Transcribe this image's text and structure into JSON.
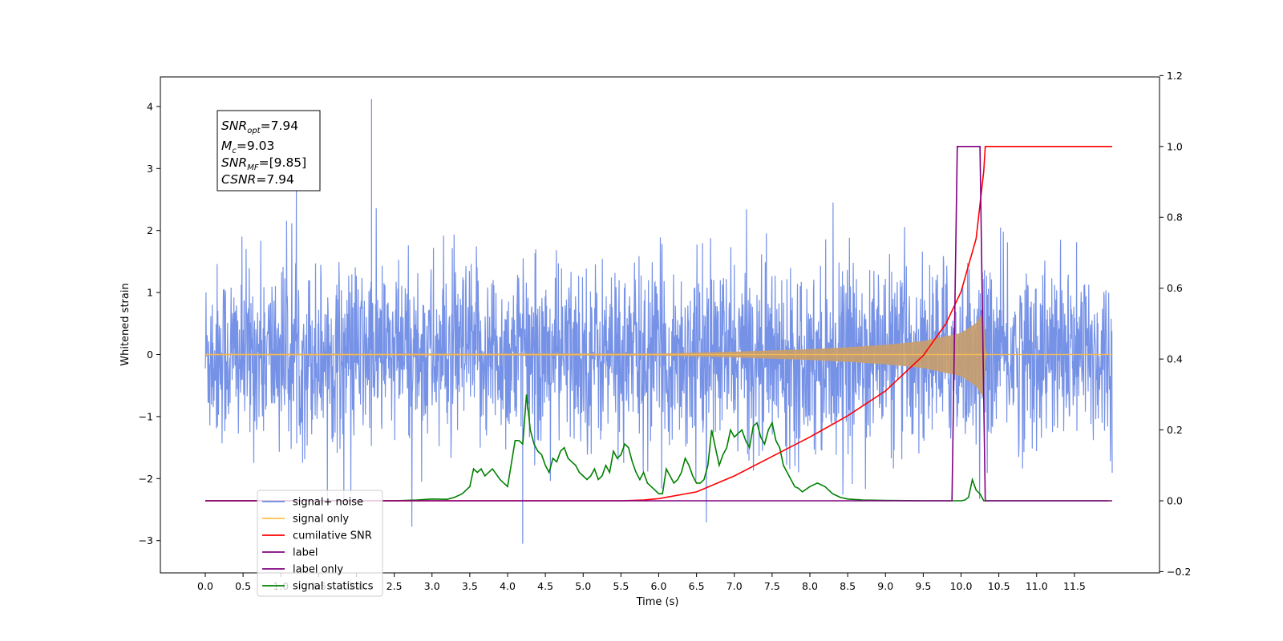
{
  "chart_data": {
    "type": "line",
    "xlabel": "Time (s)",
    "ylabel": "Whitened strain",
    "xlim": [
      -0.6,
      12.55
    ],
    "ylim_left": [
      -3.5,
      4.5
    ],
    "ylim_right": [
      -0.2,
      1.2
    ],
    "x_ticks": [
      "0.0",
      "0.5",
      "1.0",
      "1.5",
      "2.0",
      "2.5",
      "3.0",
      "3.5",
      "4.0",
      "4.5",
      "5.0",
      "5.5",
      "6.0",
      "6.5",
      "7.0",
      "7.5",
      "8.0",
      "8.5",
      "9.0",
      "9.5",
      "10.0",
      "10.5",
      "11.0",
      "11.5"
    ],
    "y_ticks_left": [
      "−3",
      "−2",
      "−1",
      "0",
      "1",
      "2",
      "3",
      "4"
    ],
    "y_ticks_right": [
      "−0.2",
      "0.0",
      "0.2",
      "0.4",
      "0.6",
      "0.8",
      "1.0",
      "1.2"
    ],
    "grid": false,
    "legend_position": "lower-left",
    "legend": [
      {
        "name": "signal+ noise",
        "color": "#6f8ce6"
      },
      {
        "name": "signal only",
        "color": "#ffc04d"
      },
      {
        "name": "cumilative SNR",
        "color": "#ff0000"
      },
      {
        "name": "label",
        "color": "#800080"
      },
      {
        "name": "label only",
        "color": "#800080"
      },
      {
        "name": "signal statistics",
        "color": "#008000"
      }
    ],
    "annotation": {
      "snr_opt": "7.94",
      "mc": "9.03",
      "snr_mf": "[9.85]",
      "csnr": "7.94"
    },
    "series": [
      {
        "name": "signal+ noise",
        "axis": "left",
        "color": "#6f8ce6",
        "x_range": [
          0.0,
          12.0
        ],
        "typical_range": [
          -1.5,
          1.5
        ],
        "peak_max": [
          2.2,
          4.12
        ],
        "peak_min": [
          4.2,
          -3.05
        ]
      },
      {
        "name": "signal only",
        "axis": "left",
        "color": "#ffc04d",
        "x_range": [
          0.0,
          12.0
        ],
        "envelope_x": [
          0,
          6.0,
          7.0,
          8.0,
          8.5,
          9.0,
          9.5,
          10.0,
          10.2,
          10.3,
          10.32,
          12.0
        ],
        "envelope_amp": [
          0.005,
          0.01,
          0.04,
          0.08,
          0.11,
          0.15,
          0.21,
          0.34,
          0.5,
          0.68,
          0.0,
          0.0
        ]
      },
      {
        "name": "cumilative SNR",
        "axis": "right",
        "color": "#ff0000",
        "x": [
          0,
          5.5,
          5.8,
          6.0,
          6.5,
          7.0,
          7.5,
          8.0,
          8.5,
          9.0,
          9.5,
          9.8,
          10.0,
          10.2,
          10.3,
          10.32,
          12.0
        ],
        "values": [
          0,
          0,
          0.002,
          0.006,
          0.025,
          0.07,
          0.125,
          0.18,
          0.24,
          0.31,
          0.41,
          0.5,
          0.59,
          0.74,
          0.93,
          1.0,
          1.0
        ]
      },
      {
        "name": "label",
        "axis": "right",
        "color": "#800080",
        "x": [
          0,
          9.88,
          9.95,
          10.25,
          10.32,
          12.0
        ],
        "values": [
          0,
          0,
          1.0,
          1.0,
          0,
          0
        ]
      },
      {
        "name": "signal statistics",
        "axis": "right",
        "color": "#008000",
        "x": [
          0,
          2.5,
          2.8,
          3.0,
          3.2,
          3.3,
          3.4,
          3.5,
          3.55,
          3.6,
          3.65,
          3.7,
          3.75,
          3.8,
          3.85,
          3.9,
          3.95,
          4.0,
          4.1,
          4.15,
          4.2,
          4.25,
          4.3,
          4.35,
          4.4,
          4.45,
          4.5,
          4.55,
          4.6,
          4.65,
          4.7,
          4.75,
          4.8,
          4.85,
          4.9,
          4.95,
          5.0,
          5.05,
          5.1,
          5.15,
          5.2,
          5.25,
          5.3,
          5.35,
          5.4,
          5.45,
          5.5,
          5.55,
          5.6,
          5.65,
          5.7,
          5.75,
          5.8,
          5.85,
          5.9,
          5.95,
          6.0,
          6.05,
          6.1,
          6.15,
          6.2,
          6.25,
          6.3,
          6.35,
          6.4,
          6.45,
          6.5,
          6.55,
          6.6,
          6.65,
          6.7,
          6.75,
          6.8,
          6.85,
          6.9,
          6.95,
          7.0,
          7.05,
          7.1,
          7.15,
          7.2,
          7.25,
          7.3,
          7.35,
          7.4,
          7.45,
          7.5,
          7.55,
          7.6,
          7.65,
          7.7,
          7.75,
          7.8,
          7.85,
          7.9,
          8.0,
          8.1,
          8.2,
          8.3,
          8.4,
          8.5,
          8.7,
          9.0,
          9.5,
          10.0,
          10.05,
          10.1,
          10.15,
          10.2,
          10.25,
          10.3,
          10.4,
          11.0,
          11.5,
          11.95
        ],
        "values": [
          0,
          0,
          0.002,
          0.005,
          0.004,
          0.01,
          0.02,
          0.04,
          0.09,
          0.08,
          0.09,
          0.07,
          0.08,
          0.09,
          0.075,
          0.06,
          0.05,
          0.04,
          0.17,
          0.17,
          0.16,
          0.3,
          0.2,
          0.16,
          0.14,
          0.13,
          0.1,
          0.08,
          0.12,
          0.11,
          0.14,
          0.15,
          0.12,
          0.11,
          0.1,
          0.08,
          0.07,
          0.06,
          0.07,
          0.09,
          0.06,
          0.07,
          0.1,
          0.08,
          0.14,
          0.12,
          0.13,
          0.16,
          0.15,
          0.11,
          0.08,
          0.06,
          0.08,
          0.05,
          0.04,
          0.03,
          0.02,
          0.02,
          0.09,
          0.07,
          0.05,
          0.06,
          0.08,
          0.12,
          0.1,
          0.07,
          0.05,
          0.05,
          0.06,
          0.1,
          0.2,
          0.15,
          0.1,
          0.13,
          0.15,
          0.2,
          0.18,
          0.19,
          0.2,
          0.17,
          0.15,
          0.21,
          0.22,
          0.18,
          0.16,
          0.2,
          0.22,
          0.17,
          0.15,
          0.1,
          0.08,
          0.06,
          0.04,
          0.035,
          0.025,
          0.04,
          0.05,
          0.04,
          0.02,
          0.01,
          0.005,
          0.002,
          0.001,
          0.0,
          0.0,
          0.002,
          0.01,
          0.06,
          0.03,
          0.02,
          0.0,
          0.0,
          0.0,
          0.0,
          0.0
        ]
      }
    ]
  }
}
